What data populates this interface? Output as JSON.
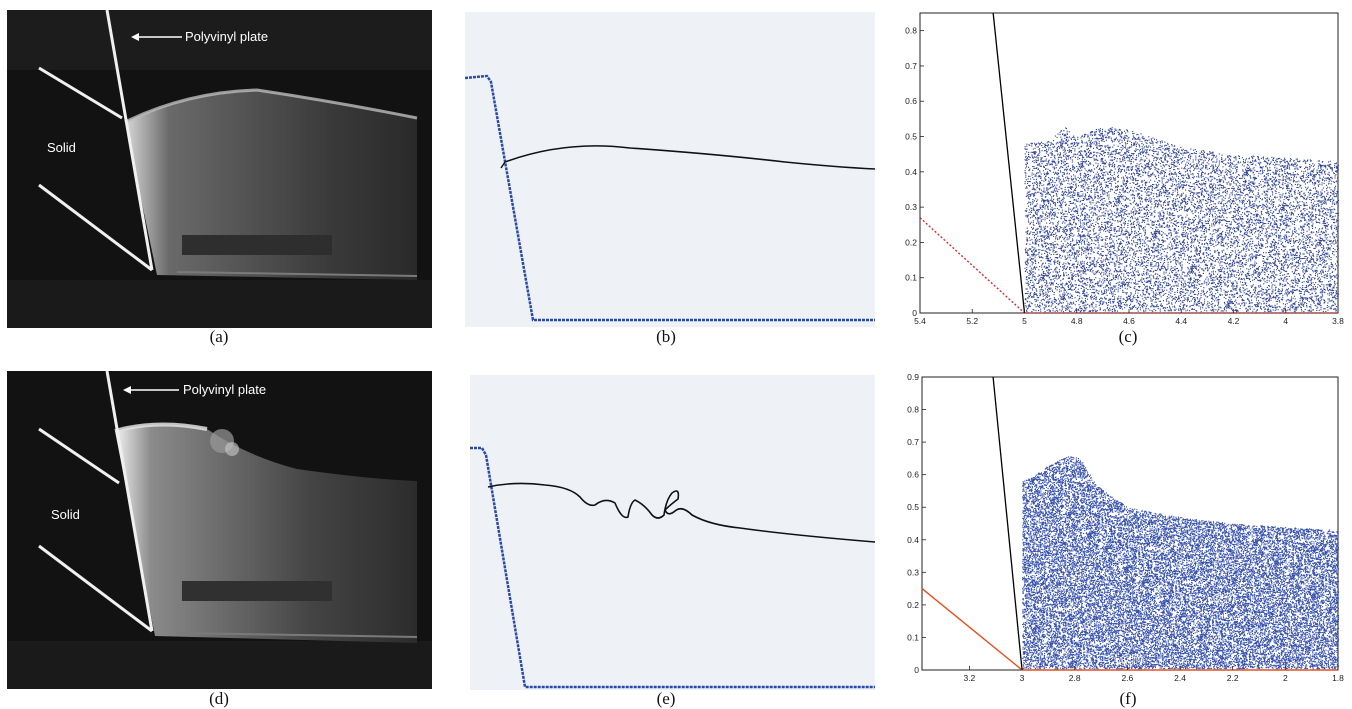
{
  "figure": {
    "labels": {
      "a": "(a)",
      "b": "(b)",
      "c": "(c)",
      "d": "(d)",
      "e": "(e)",
      "f": "(f)"
    },
    "photo_annotations": {
      "plate": "Polyvinyl plate",
      "solid": "Solid"
    }
  },
  "chart_data": [
    {
      "type": "scatter",
      "panel": "c",
      "xlim": [
        5.4,
        3.8
      ],
      "ylim": [
        0,
        0.85
      ],
      "x_ticks": [
        "5.4",
        "5.2",
        "5",
        "4.8",
        "4.6",
        "4.4",
        "4.2",
        "4",
        "3.8"
      ],
      "y_ticks": [
        "0",
        "0.1",
        "0.2",
        "0.3",
        "0.4",
        "0.5",
        "0.6",
        "0.7",
        "0.8"
      ],
      "series": [
        {
          "role": "fluid-particles",
          "color": "#2b3f8f",
          "surface": [
            [
              5.0,
              0.48
            ],
            [
              4.9,
              0.49
            ],
            [
              4.85,
              0.53
            ],
            [
              4.8,
              0.5
            ],
            [
              4.7,
              0.53
            ],
            [
              4.6,
              0.52
            ],
            [
              4.4,
              0.47
            ],
            [
              4.2,
              0.45
            ],
            [
              4.0,
              0.44
            ],
            [
              3.8,
              0.43
            ]
          ]
        },
        {
          "role": "wedge-face",
          "color": "#000000",
          "points": [
            [
              5.0,
              0.0
            ],
            [
              5.12,
              0.85
            ]
          ]
        },
        {
          "role": "solid-bottom",
          "color": "#d03030",
          "style": "dotted",
          "points": [
            [
              5.4,
              0.27
            ],
            [
              5.0,
              0.0
            ],
            [
              3.8,
              0.0
            ]
          ]
        }
      ]
    },
    {
      "type": "scatter",
      "panel": "f",
      "xlim": [
        3.38,
        1.8
      ],
      "ylim": [
        0,
        0.9
      ],
      "x_ticks": [
        "3.2",
        "3",
        "2.8",
        "2.6",
        "2.4",
        "2.2",
        "2",
        "1.8"
      ],
      "y_ticks": [
        "0",
        "0.1",
        "0.2",
        "0.3",
        "0.4",
        "0.5",
        "0.6",
        "0.7",
        "0.8",
        "0.9"
      ],
      "series": [
        {
          "role": "fluid-particles",
          "color": "#2e4aa8",
          "surface": [
            [
              3.0,
              0.58
            ],
            [
              2.95,
              0.6
            ],
            [
              2.9,
              0.63
            ],
            [
              2.82,
              0.66
            ],
            [
              2.78,
              0.65
            ],
            [
              2.72,
              0.57
            ],
            [
              2.6,
              0.5
            ],
            [
              2.4,
              0.47
            ],
            [
              2.2,
              0.45
            ],
            [
              2.0,
              0.44
            ],
            [
              1.8,
              0.43
            ]
          ]
        },
        {
          "role": "wedge-face",
          "color": "#000000",
          "points": [
            [
              3.0,
              0.0
            ],
            [
              3.11,
              0.9
            ]
          ]
        },
        {
          "role": "solid-bottom",
          "color": "#e05020",
          "points": [
            [
              3.38,
              0.25
            ],
            [
              3.0,
              0.0
            ],
            [
              1.8,
              0.0
            ]
          ]
        }
      ]
    }
  ]
}
